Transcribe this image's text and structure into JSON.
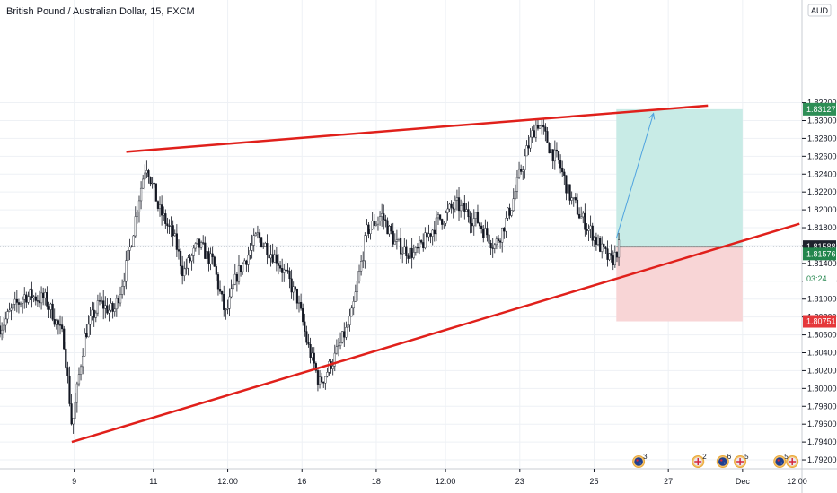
{
  "colors": {
    "trendline": "#e0201b",
    "candle": "#131722",
    "grid": "#eef1f5",
    "profit_zone": "#c8ebe6",
    "loss_zone": "#f8d5d6",
    "entry_line": "#8c8c8c",
    "target_arrow": "#4fa3e0",
    "badge_target": "#2e8e56",
    "badge_current": "#23864d",
    "badge_stop": "#e5383b",
    "badge_entry": "#1e222d"
  },
  "chart_data": {
    "type": "candlestick",
    "title": "British Pound / Australian Dollar, 15, FXCM",
    "currency": "AUD",
    "ylim": [
      1.791,
      1.8435
    ],
    "y_ticks": [
      "1.79200",
      "1.79400",
      "1.79600",
      "1.79800",
      "1.80000",
      "1.80200",
      "1.80400",
      "1.80600",
      "1.80800",
      "1.81000",
      "1.81200",
      "1.81400",
      "1.81600",
      "1.81800",
      "1.82000",
      "1.82200",
      "1.82400",
      "1.82600",
      "1.82800",
      "1.83000",
      "1.83200"
    ],
    "x_range": [
      0,
      16.2
    ],
    "x_ticks": [
      {
        "t": 1.5,
        "label": "9"
      },
      {
        "t": 3.1,
        "label": "11"
      },
      {
        "t": 4.6,
        "label": "12:00"
      },
      {
        "t": 6.1,
        "label": "16"
      },
      {
        "t": 7.6,
        "label": "18"
      },
      {
        "t": 9.0,
        "label": "12:00"
      },
      {
        "t": 10.5,
        "label": "23"
      },
      {
        "t": 12.0,
        "label": "25"
      },
      {
        "t": 13.5,
        "label": "27"
      },
      {
        "t": 15.0,
        "label": "Dec"
      },
      {
        "t": 16.1,
        "label": "12:00"
      }
    ],
    "path_keypoints": [
      [
        0.0,
        1.807
      ],
      [
        0.5,
        1.8105
      ],
      [
        0.9,
        1.81
      ],
      [
        1.1,
        1.808
      ],
      [
        1.3,
        1.805
      ],
      [
        1.45,
        1.7955
      ],
      [
        1.7,
        1.806
      ],
      [
        2.0,
        1.8095
      ],
      [
        2.3,
        1.8085
      ],
      [
        2.6,
        1.815
      ],
      [
        2.8,
        1.8215
      ],
      [
        2.95,
        1.8255
      ],
      [
        3.2,
        1.82
      ],
      [
        3.5,
        1.817
      ],
      [
        3.7,
        1.813
      ],
      [
        4.0,
        1.816
      ],
      [
        4.3,
        1.814
      ],
      [
        4.55,
        1.808
      ],
      [
        4.8,
        1.813
      ],
      [
        5.2,
        1.817
      ],
      [
        5.6,
        1.8145
      ],
      [
        6.0,
        1.81
      ],
      [
        6.2,
        1.805
      ],
      [
        6.45,
        1.8005
      ],
      [
        6.8,
        1.804
      ],
      [
        7.1,
        1.808
      ],
      [
        7.4,
        1.8175
      ],
      [
        7.7,
        1.8195
      ],
      [
        8.0,
        1.816
      ],
      [
        8.4,
        1.815
      ],
      [
        8.8,
        1.8185
      ],
      [
        9.2,
        1.8205
      ],
      [
        9.6,
        1.819
      ],
      [
        10.0,
        1.816
      ],
      [
        10.3,
        1.82
      ],
      [
        10.6,
        1.826
      ],
      [
        10.85,
        1.83
      ],
      [
        11.1,
        1.827
      ],
      [
        11.3,
        1.825
      ],
      [
        11.5,
        1.8215
      ],
      [
        11.75,
        1.819
      ],
      [
        12.0,
        1.817
      ],
      [
        12.2,
        1.815
      ],
      [
        12.35,
        1.814
      ],
      [
        12.5,
        1.816
      ]
    ],
    "annotations": {
      "upper_trendline": [
        [
          2.55,
          1.8265
        ],
        [
          14.3,
          1.83167
        ]
      ],
      "lower_trendline": [
        [
          1.45,
          1.794
        ],
        [
          16.15,
          1.81844
        ]
      ],
      "position": {
        "t_start": 12.45,
        "t_end": 15.0,
        "entry": 1.81588,
        "target": 1.83127,
        "stop": 1.80751,
        "arrow": [
          [
            12.45,
            1.8168
          ],
          [
            13.2,
            1.8308
          ]
        ]
      }
    },
    "price_badges": {
      "target": "1.83127",
      "top_cut": "1.83200",
      "entry": "1.81588",
      "current": "1.81576",
      "countdown": "03:24",
      "stop": "1.80751",
      "stop_cut": "1.80800"
    },
    "events": [
      {
        "t": 12.9,
        "flags": [
          "au"
        ],
        "count": "3"
      },
      {
        "t": 14.1,
        "flags": [
          "uk"
        ],
        "count": "2"
      },
      {
        "t": 14.6,
        "flags": [
          "au"
        ],
        "count": "6"
      },
      {
        "t": 14.95,
        "flags": [
          "uk"
        ],
        "count": "5"
      },
      {
        "t": 15.75,
        "flags": [
          "au",
          "uk"
        ],
        "count": "5"
      }
    ]
  }
}
